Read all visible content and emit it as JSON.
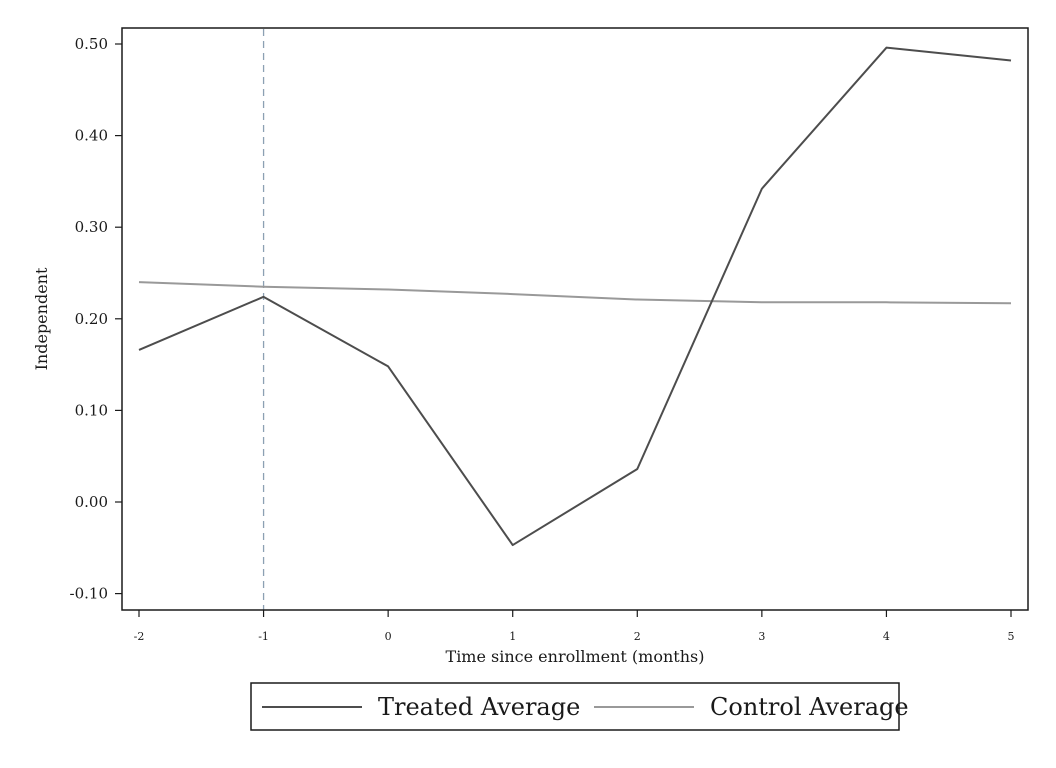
{
  "chart_data": {
    "type": "line",
    "title": "",
    "xlabel": "Time since enrollment (months)",
    "ylabel": "Independent",
    "x": [
      -2,
      -1,
      0,
      1,
      2,
      3,
      4,
      5
    ],
    "xticks": [
      "-2",
      "-1",
      "0",
      "1",
      "2",
      "3",
      "4",
      "5"
    ],
    "yticks": [
      "-0.10",
      "0.00",
      "0.10",
      "0.20",
      "0.30",
      "0.40",
      "0.50"
    ],
    "xlim": [
      -2,
      5
    ],
    "ylim": [
      -0.12,
      0.515
    ],
    "reference_line_x": -1,
    "grid": false,
    "legend_position": "bottom",
    "series": [
      {
        "name": "Treated Average",
        "color": "#4d4d4d",
        "values": [
          0.166,
          0.224,
          0.148,
          -0.047,
          0.036,
          0.342,
          0.496,
          0.482
        ]
      },
      {
        "name": "Control Average",
        "color": "#999999",
        "values": [
          0.24,
          0.235,
          0.232,
          0.227,
          0.221,
          0.218,
          0.218,
          0.217
        ]
      }
    ]
  }
}
